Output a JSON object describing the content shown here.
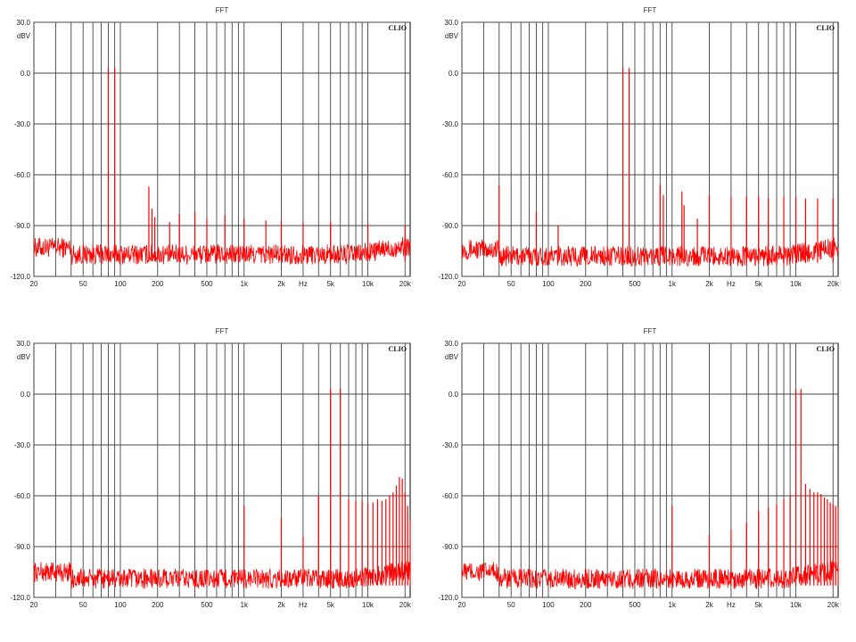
{
  "chart_data": [
    {
      "type": "line",
      "title": "FFT",
      "ylabel": "dBV",
      "logo": "CLIO",
      "xscale": "log",
      "xlim": [
        20,
        22000
      ],
      "ylim": [
        -120,
        30
      ],
      "grid": true,
      "x_tick_labels": [
        "20",
        "50",
        "100",
        "200",
        "500",
        "1k",
        "2k",
        "Hz",
        "5k",
        "10k",
        "20k"
      ],
      "y_tick_labels": [
        "30.0",
        "0.0",
        "-30.0",
        "-60.0",
        "-90.0",
        "-120.0"
      ],
      "series_color": "#ff0000",
      "noise_floor_db": -107,
      "peaks": [
        {
          "x": 80,
          "y": 3
        },
        {
          "x": 90,
          "y": 3
        },
        {
          "x": 170,
          "y": -67
        },
        {
          "x": 180,
          "y": -80
        },
        {
          "x": 190,
          "y": -85
        },
        {
          "x": 250,
          "y": -88
        },
        {
          "x": 300,
          "y": -83
        },
        {
          "x": 400,
          "y": -82
        },
        {
          "x": 500,
          "y": -86
        },
        {
          "x": 700,
          "y": -84
        },
        {
          "x": 1000,
          "y": -86
        },
        {
          "x": 1500,
          "y": -87
        },
        {
          "x": 2000,
          "y": -87
        },
        {
          "x": 3000,
          "y": -88
        },
        {
          "x": 5000,
          "y": -88
        },
        {
          "x": 10000,
          "y": -89
        },
        {
          "x": 20000,
          "y": -90
        }
      ]
    },
    {
      "type": "line",
      "title": "FFT",
      "ylabel": "dBV",
      "logo": "CLIO",
      "xscale": "log",
      "xlim": [
        20,
        22000
      ],
      "ylim": [
        -120,
        30
      ],
      "grid": true,
      "x_tick_labels": [
        "20",
        "50",
        "100",
        "200",
        "500",
        "1k",
        "2k",
        "Hz",
        "5k",
        "10k",
        "20k"
      ],
      "y_tick_labels": [
        "30.0",
        "0.0",
        "-30.0",
        "-60.0",
        "-90.0",
        "-120.0"
      ],
      "series_color": "#ff0000",
      "noise_floor_db": -108,
      "peaks": [
        {
          "x": 40,
          "y": -66
        },
        {
          "x": 80,
          "y": -82
        },
        {
          "x": 120,
          "y": -90
        },
        {
          "x": 400,
          "y": 3
        },
        {
          "x": 450,
          "y": 3
        },
        {
          "x": 800,
          "y": -66
        },
        {
          "x": 850,
          "y": -72
        },
        {
          "x": 1200,
          "y": -70
        },
        {
          "x": 1250,
          "y": -78
        },
        {
          "x": 1600,
          "y": -86
        },
        {
          "x": 2000,
          "y": -72
        },
        {
          "x": 3000,
          "y": -73
        },
        {
          "x": 4000,
          "y": -73
        },
        {
          "x": 5000,
          "y": -73
        },
        {
          "x": 6000,
          "y": -74
        },
        {
          "x": 8000,
          "y": -73
        },
        {
          "x": 10000,
          "y": -73
        },
        {
          "x": 12000,
          "y": -74
        },
        {
          "x": 15000,
          "y": -74
        },
        {
          "x": 20000,
          "y": -74
        }
      ]
    },
    {
      "type": "line",
      "title": "FFT",
      "ylabel": "dBV",
      "logo": "CLIO",
      "xscale": "log",
      "xlim": [
        20,
        22000
      ],
      "ylim": [
        -120,
        30
      ],
      "grid": true,
      "x_tick_labels": [
        "20",
        "50",
        "100",
        "200",
        "500",
        "1k",
        "2k",
        "Hz",
        "5k",
        "10k",
        "20k"
      ],
      "y_tick_labels": [
        "30.0",
        "0.0",
        "-30.0",
        "-60.0",
        "-90.0",
        "-120.0"
      ],
      "series_color": "#ff0000",
      "noise_floor_db": -109,
      "peaks": [
        {
          "x": 1000,
          "y": -66
        },
        {
          "x": 2000,
          "y": -73
        },
        {
          "x": 3000,
          "y": -84
        },
        {
          "x": 4000,
          "y": -60
        },
        {
          "x": 5000,
          "y": 3
        },
        {
          "x": 6000,
          "y": 3
        },
        {
          "x": 7000,
          "y": -62
        },
        {
          "x": 8000,
          "y": -63
        },
        {
          "x": 9000,
          "y": -63
        },
        {
          "x": 10000,
          "y": -64
        },
        {
          "x": 11000,
          "y": -64
        },
        {
          "x": 12000,
          "y": -62
        },
        {
          "x": 13000,
          "y": -63
        },
        {
          "x": 14000,
          "y": -62
        },
        {
          "x": 15000,
          "y": -60
        },
        {
          "x": 16000,
          "y": -58
        },
        {
          "x": 17000,
          "y": -54
        },
        {
          "x": 18000,
          "y": -49
        },
        {
          "x": 19000,
          "y": -50
        },
        {
          "x": 20000,
          "y": -58
        },
        {
          "x": 21000,
          "y": -66
        },
        {
          "x": 22000,
          "y": -74
        }
      ]
    },
    {
      "type": "line",
      "title": "FFT",
      "ylabel": "dBV",
      "logo": "CLIO",
      "xscale": "log",
      "xlim": [
        20,
        22000
      ],
      "ylim": [
        -120,
        30
      ],
      "grid": true,
      "x_tick_labels": [
        "20",
        "50",
        "100",
        "200",
        "500",
        "1k",
        "2k",
        "Hz",
        "5k",
        "10k",
        "20k"
      ],
      "y_tick_labels": [
        "30.0",
        "0.0",
        "-30.0",
        "-60.0",
        "-90.0",
        "-120.0"
      ],
      "series_color": "#ff0000",
      "noise_floor_db": -109,
      "peaks": [
        {
          "x": 1000,
          "y": -66
        },
        {
          "x": 2000,
          "y": -83
        },
        {
          "x": 3000,
          "y": -80
        },
        {
          "x": 4000,
          "y": -76
        },
        {
          "x": 5000,
          "y": -69
        },
        {
          "x": 6000,
          "y": -67
        },
        {
          "x": 7000,
          "y": -65
        },
        {
          "x": 8000,
          "y": -62
        },
        {
          "x": 9000,
          "y": -60
        },
        {
          "x": 10000,
          "y": 3
        },
        {
          "x": 11000,
          "y": 3
        },
        {
          "x": 12000,
          "y": -53
        },
        {
          "x": 13000,
          "y": -56
        },
        {
          "x": 14000,
          "y": -58
        },
        {
          "x": 15000,
          "y": -58
        },
        {
          "x": 16000,
          "y": -59
        },
        {
          "x": 17000,
          "y": -61
        },
        {
          "x": 18000,
          "y": -62
        },
        {
          "x": 19000,
          "y": -64
        },
        {
          "x": 20000,
          "y": -65
        },
        {
          "x": 21000,
          "y": -66
        },
        {
          "x": 22000,
          "y": -67
        }
      ]
    }
  ]
}
